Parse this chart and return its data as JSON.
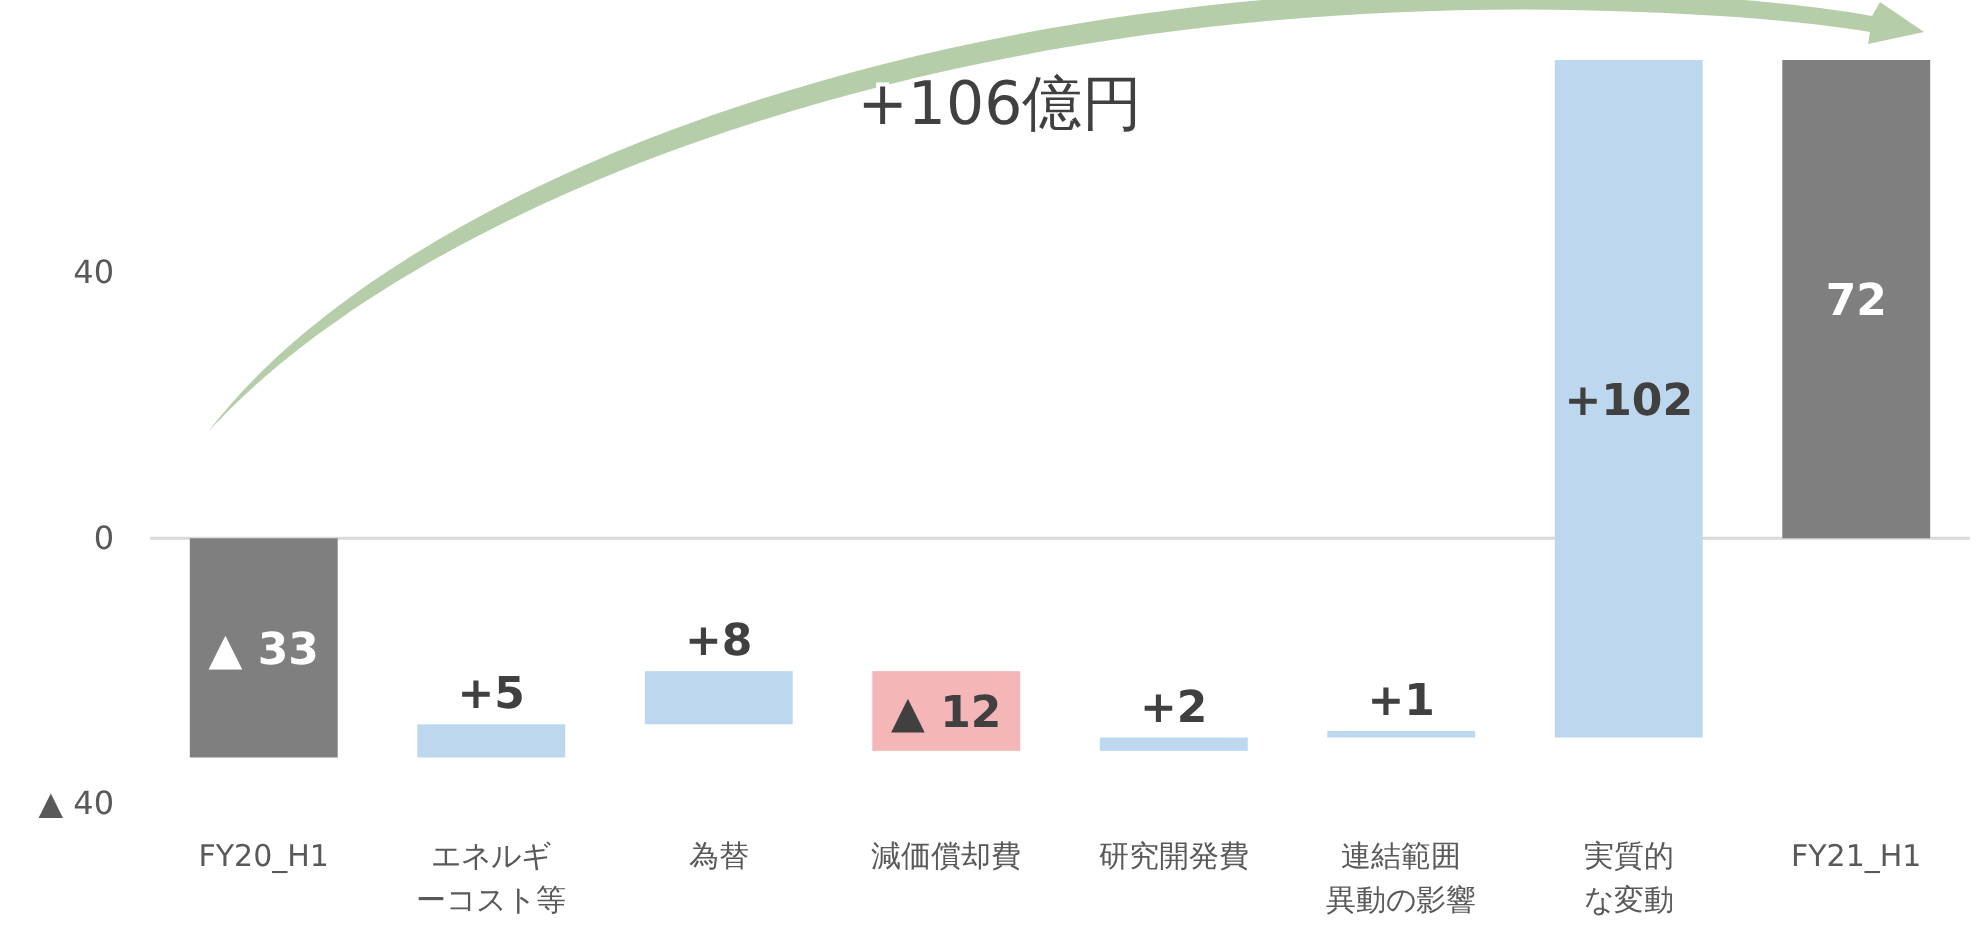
{
  "chart_data": {
    "type": "bar",
    "categories": [
      "FY20_H1",
      "エネルギーコスト等",
      "為替",
      "減価償却費",
      "研究開発費",
      "連結範囲異動の影響",
      "実質的な変動",
      "FY21_H1"
    ],
    "values": [
      -33,
      5,
      8,
      -12,
      2,
      1,
      102,
      72
    ],
    "base": [
      0,
      -33,
      -28,
      -20,
      -32,
      -30,
      -30,
      0
    ],
    "colors": [
      "#7f7f7f",
      "#bdd7ee",
      "#bdd7ee",
      "#f4b6b6",
      "#bdd7ee",
      "#bdd7ee",
      "#bdd7ee",
      "#7f7f7f"
    ],
    "value_labels": [
      "▲ 33",
      "+5",
      "+8",
      "▲ 12",
      "+2",
      "+1",
      "+102",
      "72"
    ],
    "ylim": [
      -40,
      72
    ],
    "yticks": [
      {
        "value": -40,
        "label": "▲ 40"
      },
      0,
      40
    ],
    "ref_lines": [
      {
        "axis": "y",
        "value": 0,
        "color": "#d9d9d9"
      }
    ],
    "annotations": [
      "+106億円"
    ]
  }
}
